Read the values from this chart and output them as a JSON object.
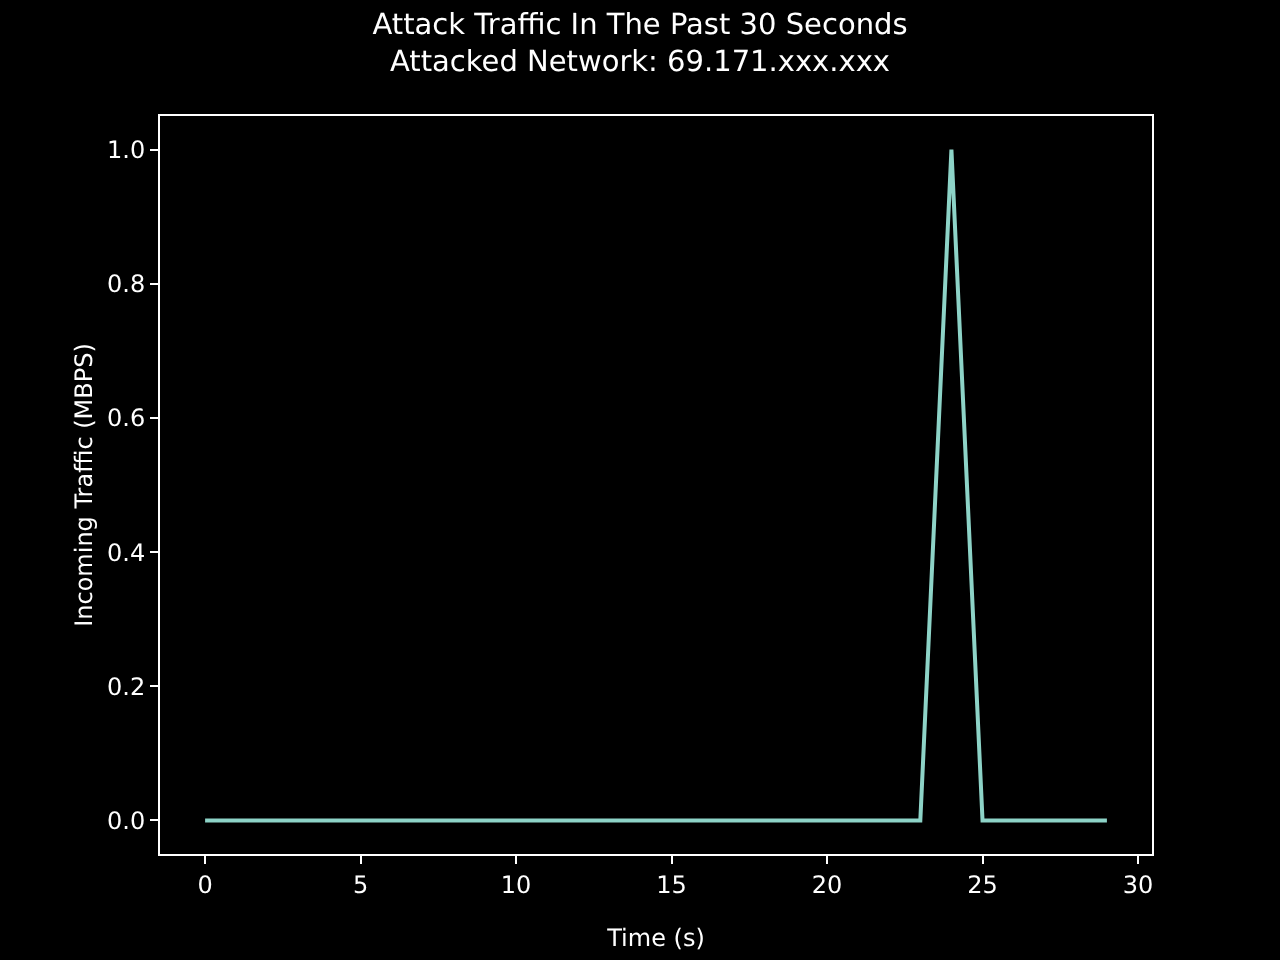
{
  "chart_data": {
    "type": "line",
    "title": "Attack Traffic In The Past 30 Seconds",
    "subtitle": "Attacked Network: 69.171.xxx.xxx",
    "xlabel": "Time (s)",
    "ylabel": "Incoming Traffic (MBPS)",
    "x": [
      0,
      1,
      2,
      3,
      4,
      5,
      6,
      7,
      8,
      9,
      10,
      11,
      12,
      13,
      14,
      15,
      16,
      17,
      18,
      19,
      20,
      21,
      22,
      23,
      24,
      25,
      26,
      27,
      28,
      29
    ],
    "series": [
      {
        "color": "#8dd3c7",
        "values": [
          0,
          0,
          0,
          0,
          0,
          0,
          0,
          0,
          0,
          0,
          0,
          0,
          0,
          0,
          0,
          0,
          0,
          0,
          0,
          0,
          0,
          0,
          0,
          0,
          1.0,
          0,
          0,
          0,
          0,
          0
        ]
      }
    ],
    "xlim": [
      -1.45,
      30.45
    ],
    "ylim": [
      -0.05,
      1.05
    ],
    "xticks": [
      0,
      5,
      10,
      15,
      20,
      25,
      30
    ],
    "yticks": [
      {
        "value": 0,
        "label": "0.0"
      },
      {
        "value": 0.2,
        "label": "0.2"
      },
      {
        "value": 0.4,
        "label": "0.4"
      },
      {
        "value": 0.6,
        "label": "0.6"
      },
      {
        "value": 0.8,
        "label": "0.8"
      },
      {
        "value": 1.0,
        "label": "1.0"
      }
    ],
    "grid": false,
    "marker": "none",
    "line_style": "solid"
  }
}
